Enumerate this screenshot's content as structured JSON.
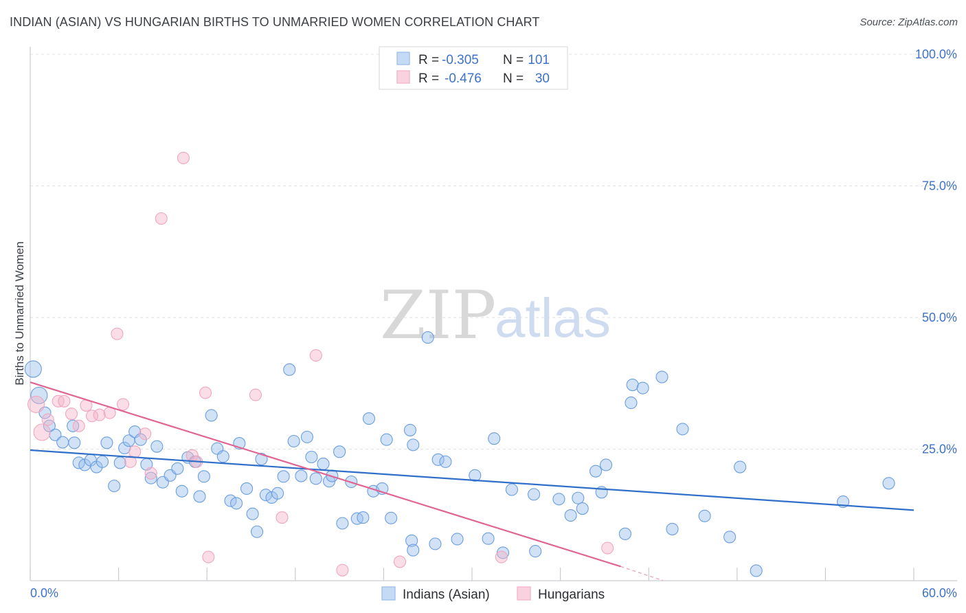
{
  "header": {
    "title": "INDIAN (ASIAN) VS HUNGARIAN BIRTHS TO UNMARRIED WOMEN CORRELATION CHART",
    "source": "Source: ZipAtlas.com"
  },
  "watermark": {
    "zip": "ZIP",
    "atlas": "atlas"
  },
  "legend_top": [
    {
      "r_label": "R = ",
      "r_value": "-0.305",
      "n_label": "N = ",
      "n_value": "101",
      "color": "#9bbfea"
    },
    {
      "r_label": "R = ",
      "r_value": "-0.476",
      "n_label": "N = ",
      "n_value": "30",
      "color": "#f3b3c8"
    }
  ],
  "legend_bottom": [
    {
      "label": "Indians (Asian)",
      "color": "#9bbfea"
    },
    {
      "label": "Hungarians",
      "color": "#f3b3c8"
    }
  ],
  "chart_data": {
    "type": "scatter",
    "title": "INDIAN (ASIAN) VS HUNGARIAN BIRTHS TO UNMARRIED WOMEN CORRELATION CHART",
    "xlabel": "",
    "ylabel": "Births to Unmarried Women",
    "xlim": [
      0,
      60
    ],
    "ylim": [
      0,
      100
    ],
    "x_tick_labels": [
      "0.0%",
      "60.0%"
    ],
    "y_ticks": [
      25,
      50,
      75,
      100
    ],
    "y_tick_labels": [
      "25.0%",
      "50.0%",
      "75.0%",
      "100.0%"
    ],
    "grid": true,
    "legend_position": "top-center",
    "series": [
      {
        "name": "Indians (Asian)",
        "color": "#6a9ee0",
        "trend": {
          "x": [
            0,
            60
          ],
          "y": [
            24.8,
            13.4
          ],
          "color": "#2f6fc9"
        },
        "points": [
          [
            0.2,
            40.2,
            2
          ],
          [
            0.6,
            35.2,
            2
          ],
          [
            1.0,
            31.9,
            1
          ],
          [
            1.3,
            29.4,
            1
          ],
          [
            1.7,
            27.7,
            1
          ],
          [
            2.2,
            26.3,
            1
          ],
          [
            2.9,
            29.4,
            1
          ],
          [
            3.0,
            26.2,
            1
          ],
          [
            3.3,
            22.4,
            1
          ],
          [
            3.7,
            22.0,
            1
          ],
          [
            4.1,
            22.9,
            1
          ],
          [
            4.5,
            21.6,
            1
          ],
          [
            4.9,
            22.6,
            1
          ],
          [
            5.2,
            26.2,
            1
          ],
          [
            5.7,
            18.0,
            1
          ],
          [
            6.1,
            22.4,
            1
          ],
          [
            6.4,
            25.2,
            1
          ],
          [
            6.7,
            26.6,
            1
          ],
          [
            7.1,
            28.3,
            1
          ],
          [
            7.5,
            26.8,
            1
          ],
          [
            7.9,
            22.1,
            1
          ],
          [
            8.2,
            19.5,
            1
          ],
          [
            8.6,
            25.5,
            1
          ],
          [
            9.0,
            18.7,
            1
          ],
          [
            9.5,
            20.0,
            1
          ],
          [
            10.0,
            21.3,
            1
          ],
          [
            10.3,
            17.0,
            1
          ],
          [
            10.7,
            23.4,
            1
          ],
          [
            11.2,
            22.6,
            1
          ],
          [
            11.5,
            16.0,
            1
          ],
          [
            11.8,
            19.8,
            1
          ],
          [
            12.3,
            31.4,
            1
          ],
          [
            12.7,
            25.1,
            1
          ],
          [
            13.1,
            23.6,
            1
          ],
          [
            13.6,
            15.2,
            1
          ],
          [
            14.0,
            14.7,
            1
          ],
          [
            14.2,
            26.1,
            1
          ],
          [
            14.7,
            17.5,
            1
          ],
          [
            15.1,
            12.7,
            1
          ],
          [
            15.4,
            9.3,
            1
          ],
          [
            15.7,
            23.1,
            1
          ],
          [
            16.0,
            16.3,
            1
          ],
          [
            16.4,
            15.8,
            1
          ],
          [
            16.8,
            16.6,
            1
          ],
          [
            17.2,
            19.8,
            1
          ],
          [
            17.6,
            40.1,
            1
          ],
          [
            17.9,
            26.5,
            1
          ],
          [
            18.4,
            19.9,
            1
          ],
          [
            18.8,
            27.3,
            1
          ],
          [
            19.1,
            23.5,
            1
          ],
          [
            19.4,
            19.4,
            1
          ],
          [
            19.9,
            22.2,
            1
          ],
          [
            20.3,
            18.9,
            1
          ],
          [
            20.5,
            19.9,
            1
          ],
          [
            21.0,
            24.5,
            1
          ],
          [
            21.2,
            10.9,
            1
          ],
          [
            21.8,
            18.8,
            1
          ],
          [
            22.2,
            11.8,
            1
          ],
          [
            22.6,
            12.0,
            1
          ],
          [
            23.0,
            30.8,
            1
          ],
          [
            23.3,
            17.0,
            1
          ],
          [
            23.9,
            17.5,
            1
          ],
          [
            24.2,
            26.8,
            1
          ],
          [
            24.5,
            11.9,
            1
          ],
          [
            25.8,
            28.6,
            1
          ],
          [
            25.9,
            7.6,
            1
          ],
          [
            26.0,
            5.8,
            1
          ],
          [
            26.0,
            25.8,
            1
          ],
          [
            27.0,
            46.2,
            1
          ],
          [
            27.5,
            7.0,
            1
          ],
          [
            27.7,
            23.0,
            1
          ],
          [
            28.2,
            22.6,
            1
          ],
          [
            29.0,
            7.9,
            1
          ],
          [
            30.2,
            20.0,
            1
          ],
          [
            31.1,
            8.0,
            1
          ],
          [
            31.5,
            27.0,
            1
          ],
          [
            32.1,
            5.3,
            1
          ],
          [
            32.7,
            17.3,
            1
          ],
          [
            34.2,
            16.4,
            1
          ],
          [
            34.3,
            5.6,
            1
          ],
          [
            35.9,
            15.5,
            1
          ],
          [
            36.7,
            12.4,
            1
          ],
          [
            37.2,
            15.7,
            1
          ],
          [
            37.5,
            13.7,
            1
          ],
          [
            38.4,
            20.8,
            1
          ],
          [
            38.8,
            16.8,
            1
          ],
          [
            39.1,
            22.0,
            1
          ],
          [
            40.4,
            8.9,
            1
          ],
          [
            40.8,
            33.8,
            1
          ],
          [
            40.9,
            37.2,
            1
          ],
          [
            41.6,
            36.6,
            1
          ],
          [
            42.9,
            38.7,
            1
          ],
          [
            43.6,
            9.8,
            1
          ],
          [
            44.3,
            28.8,
            1
          ],
          [
            45.8,
            12.3,
            1
          ],
          [
            47.5,
            8.3,
            1
          ],
          [
            48.2,
            21.6,
            1
          ],
          [
            49.3,
            1.9,
            1
          ],
          [
            55.2,
            15.0,
            1
          ],
          [
            58.3,
            18.5,
            1
          ]
        ]
      },
      {
        "name": "Hungarians",
        "color": "#f0a6bf",
        "trend": {
          "x": [
            0,
            40.1
          ],
          "y": [
            37.7,
            2.7
          ],
          "color": "#e06592",
          "dash_to": [
            43.0,
            0
          ]
        },
        "points": [
          [
            0.4,
            33.5,
            2
          ],
          [
            0.8,
            28.2,
            2
          ],
          [
            1.2,
            30.6,
            1
          ],
          [
            1.9,
            34.1,
            1
          ],
          [
            2.3,
            34.1,
            1
          ],
          [
            2.8,
            31.7,
            1
          ],
          [
            3.3,
            29.4,
            1
          ],
          [
            3.8,
            33.3,
            1
          ],
          [
            4.2,
            31.3,
            1
          ],
          [
            4.7,
            31.5,
            1
          ],
          [
            5.4,
            31.9,
            1
          ],
          [
            5.9,
            46.9,
            1
          ],
          [
            6.3,
            33.5,
            1
          ],
          [
            6.8,
            22.6,
            1
          ],
          [
            7.1,
            24.5,
            1
          ],
          [
            7.8,
            27.9,
            1
          ],
          [
            8.2,
            20.4,
            1
          ],
          [
            8.9,
            68.8,
            1
          ],
          [
            10.4,
            80.3,
            1
          ],
          [
            11.0,
            23.8,
            1
          ],
          [
            11.3,
            22.6,
            1
          ],
          [
            11.9,
            35.7,
            1
          ],
          [
            12.1,
            4.5,
            1
          ],
          [
            15.3,
            35.3,
            1
          ],
          [
            17.1,
            12.0,
            1
          ],
          [
            19.4,
            42.8,
            1
          ],
          [
            21.2,
            2.0,
            1
          ],
          [
            25.1,
            3.6,
            1
          ],
          [
            32.0,
            4.5,
            1
          ],
          [
            39.2,
            6.2,
            1
          ]
        ]
      }
    ]
  }
}
